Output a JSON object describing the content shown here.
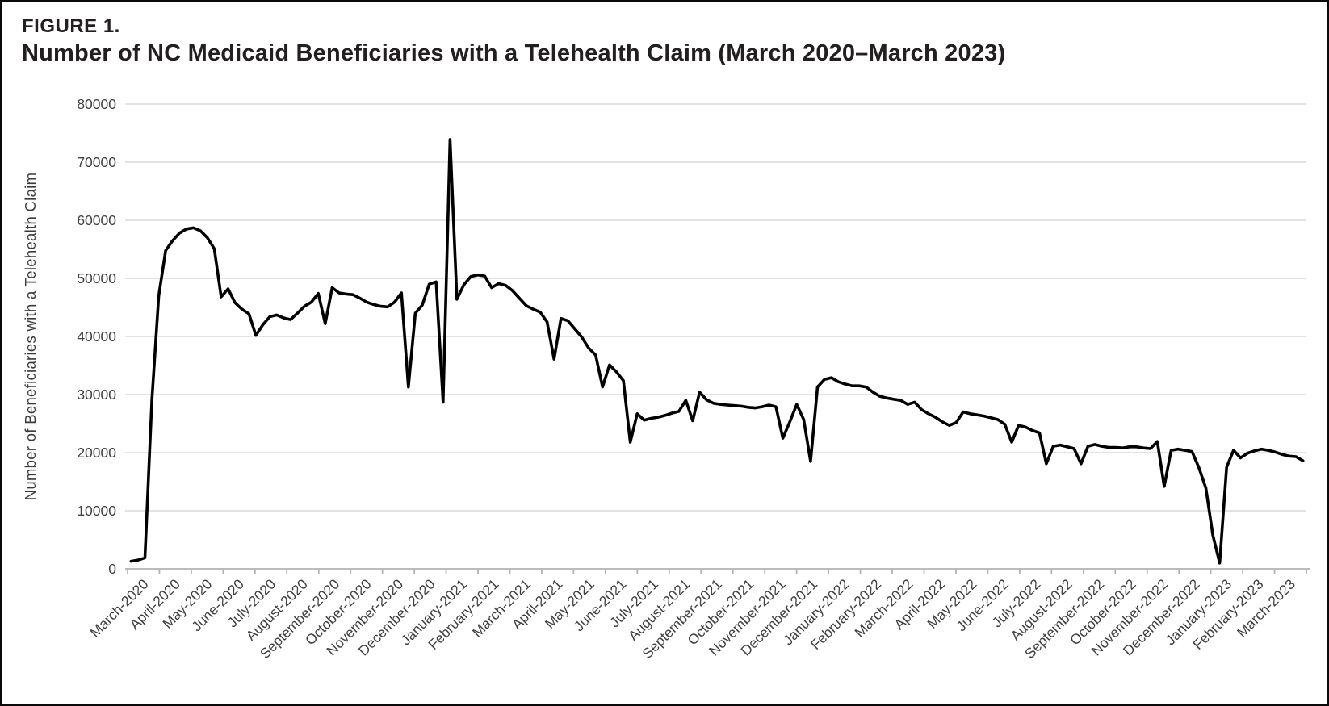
{
  "figure": {
    "label": "FIGURE 1.",
    "title": "Number of NC Medicaid Beneficiaries with a Telehealth Claim (March 2020–March 2023)"
  },
  "chart_data": {
    "type": "line",
    "title": "Number of NC Medicaid Beneficiaries with a Telehealth Claim (March 2020–March 2023)",
    "xlabel": "",
    "ylabel": "Number of Beneficiaries with a Telehealth Claim",
    "ylim": [
      0,
      80000
    ],
    "y_ticks": [
      0,
      10000,
      20000,
      30000,
      40000,
      50000,
      60000,
      70000,
      80000
    ],
    "grid": "horizontal",
    "legend_position": "none",
    "line_color": "#000000",
    "gridline_color": "#d9d9d9",
    "axis_color": "#b3b3b3",
    "tick_label_color": "#3f3f3f",
    "categories": [
      "March-2020",
      "April-2020",
      "May-2020",
      "June-2020",
      "July-2020",
      "August-2020",
      "September-2020",
      "October-2020",
      "November-2020",
      "December-2020",
      "January-2021",
      "February-2021",
      "March-2021",
      "April-2021",
      "May-2021",
      "June-2021",
      "July-2021",
      "August-2021",
      "September-2021",
      "October-2021",
      "November-2021",
      "December-2021",
      "January-2022",
      "February-2022",
      "March-2022",
      "April-2022",
      "May-2022",
      "June-2022",
      "July-2022",
      "August-2022",
      "September-2022",
      "October-2022",
      "November-2022",
      "December-2022",
      "January-2023",
      "February-2023",
      "March-2023"
    ],
    "series": [
      {
        "name": "Beneficiaries with a Telehealth Claim",
        "cadence": "weekly",
        "values": [
          1300,
          1500,
          1900,
          29000,
          47000,
          54800,
          56500,
          57800,
          58500,
          58700,
          58200,
          57000,
          55100,
          46800,
          48200,
          45800,
          44700,
          43900,
          40200,
          42000,
          43400,
          43700,
          43200,
          42900,
          44000,
          45200,
          45900,
          47400,
          42200,
          48400,
          47500,
          47300,
          47200,
          46600,
          45900,
          45500,
          45200,
          45100,
          45900,
          47500,
          31300,
          44000,
          45400,
          49000,
          49400,
          28700,
          73900,
          46400,
          48900,
          50300,
          50600,
          50400,
          48400,
          49100,
          48800,
          47900,
          46600,
          45300,
          44700,
          44200,
          42500,
          36100,
          43100,
          42700,
          41300,
          39900,
          38000,
          36800,
          31300,
          35100,
          33900,
          32400,
          21800,
          26700,
          25600,
          25900,
          26100,
          26400,
          26800,
          27100,
          29000,
          25500,
          30400,
          29100,
          28500,
          28300,
          28200,
          28100,
          28000,
          27800,
          27700,
          27900,
          28200,
          27900,
          22500,
          25300,
          28300,
          25700,
          18500,
          31300,
          32600,
          32900,
          32200,
          31800,
          31500,
          31500,
          31300,
          30400,
          29700,
          29400,
          29200,
          29000,
          28300,
          28700,
          27400,
          26700,
          26100,
          25300,
          24700,
          25200,
          27000,
          26700,
          26500,
          26300,
          26000,
          25700,
          24900,
          21800,
          24700,
          24400,
          23800,
          23400,
          18100,
          21100,
          21300,
          21000,
          20700,
          18100,
          21100,
          21400,
          21100,
          20900,
          20900,
          20800,
          21000,
          21000,
          20800,
          20700,
          21900,
          14200,
          20400,
          20600,
          20400,
          20200,
          17400,
          13900,
          5800,
          1000,
          17500,
          20400,
          19100,
          19900,
          20300,
          20600,
          20400,
          20100,
          19700,
          19400,
          19300,
          18600
        ]
      }
    ]
  }
}
